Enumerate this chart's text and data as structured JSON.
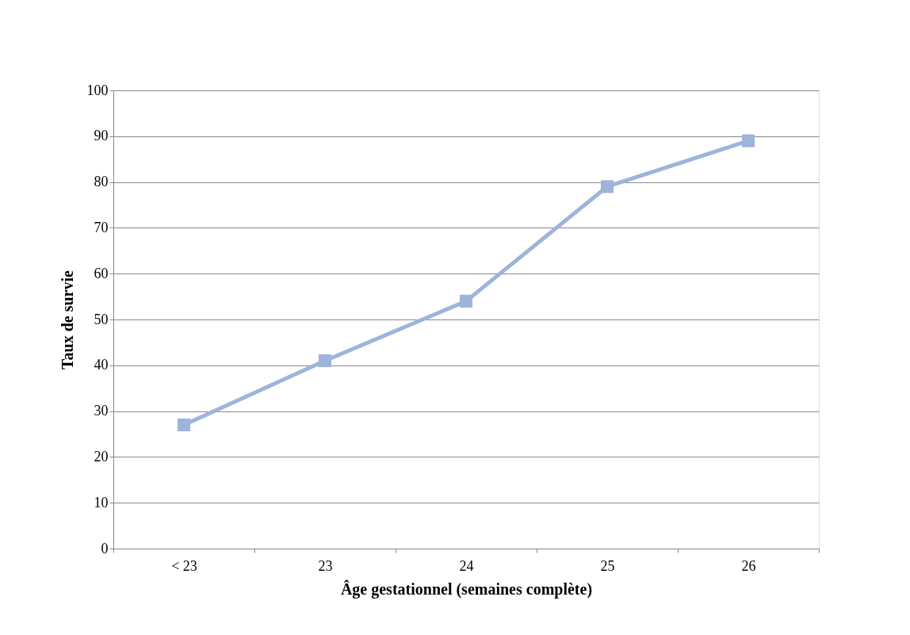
{
  "chart_data": {
    "type": "line",
    "xlabel": "Âge gestationnel (semaines complète)",
    "ylabel": "Taux de survie",
    "categories": [
      "< 23",
      "23",
      "24",
      "25",
      "26"
    ],
    "series": [
      {
        "color": "#9db4db",
        "values": [
          27,
          41,
          54,
          79,
          89
        ]
      }
    ],
    "ylim": [
      0,
      100
    ],
    "yticks": [
      0,
      10,
      20,
      30,
      40,
      50,
      60,
      70,
      80,
      90,
      100
    ],
    "grid": "y",
    "marker": "square",
    "line_style": "solid"
  }
}
